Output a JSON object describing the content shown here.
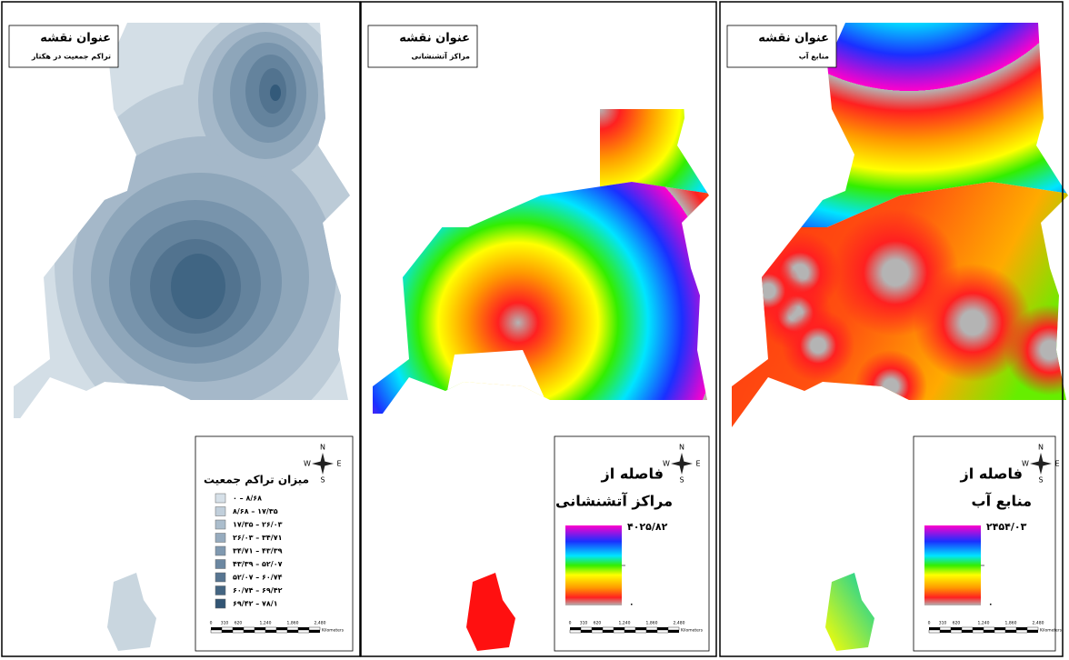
{
  "panels": [
    {
      "map_title": "عنوان نقشه",
      "map_subtitle": "تراکم جمعیت در هکتار",
      "legend_title": "میزان تراکم جمعیت",
      "classes": [
        "۰ – ۸/۶۸",
        "۸/۶۸ – ۱۷/۳۵",
        "۱۷/۳۵ – ۲۶/۰۳",
        "۲۶/۰۳ – ۳۴/۷۱",
        "۳۴/۷۱ – ۴۳/۳۹",
        "۴۳/۳۹ – ۵۲/۰۷",
        "۵۲/۰۷ – ۶۰/۷۴",
        "۶۰/۷۴ – ۶۹/۴۲",
        "۶۹/۴۲ – ۷۸/۱"
      ]
    },
    {
      "map_title": "عنوان نقشه",
      "map_subtitle": "مراکز آتشنشانی",
      "legend_title": [
        "فاصله از",
        "مراکز آتشنشانی"
      ],
      "max_label": "۴۰۲۵/۸۲",
      "min_label": "۰"
    },
    {
      "map_title": "عنوان نقشه",
      "map_subtitle": "منابع آب",
      "legend_title": [
        "فاصله از",
        "منابع آب"
      ],
      "max_label": "۲۴۵۴/۰۳",
      "min_label": "۰"
    }
  ],
  "scale_bar": {
    "ticks": [
      "0",
      "310",
      "620",
      "1,240",
      "1,860",
      "2,480"
    ],
    "unit": "Kilometers"
  },
  "compass": {
    "north": "N",
    "south": "S",
    "east": "E",
    "west": "W"
  }
}
